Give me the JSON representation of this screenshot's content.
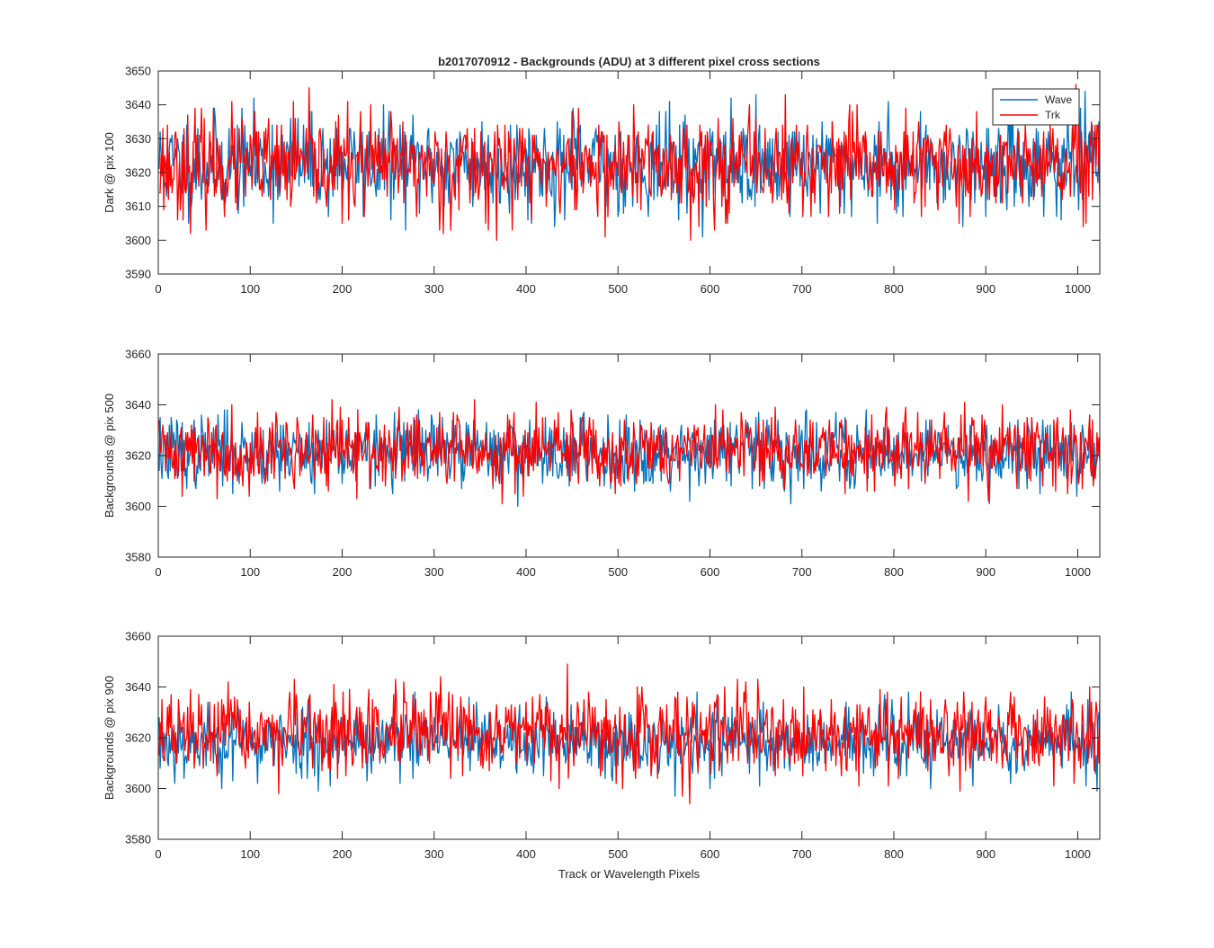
{
  "colors": {
    "wave": "#0072BD",
    "trk": "#FF0000",
    "axis": "#262626"
  },
  "chart_data": [
    {
      "type": "line",
      "title": "b2017070912 - Backgrounds (ADU) at 3 different pixel cross sections",
      "xlabel": "",
      "ylabel": "Dark @ pix 100",
      "xlim": [
        0,
        1024
      ],
      "ylim": [
        3590,
        3650
      ],
      "xticks": [
        0,
        100,
        200,
        300,
        400,
        500,
        600,
        700,
        800,
        900,
        1000
      ],
      "yticks": [
        3590,
        3600,
        3610,
        3620,
        3630,
        3640,
        3650
      ],
      "legend": {
        "position": "top-right",
        "entries": [
          "Wave",
          "Trk"
        ]
      },
      "series": [
        {
          "name": "Wave",
          "color": "#0072BD",
          "points": 1024,
          "mean": 3622.5,
          "std": 7.0,
          "min": 3600,
          "max": 3650,
          "seed": 11
        },
        {
          "name": "Trk",
          "color": "#FF0000",
          "points": 1024,
          "mean": 3622,
          "std": 7.5,
          "min": 3597,
          "max": 3649,
          "seed": 23
        }
      ]
    },
    {
      "type": "line",
      "title": "",
      "xlabel": "",
      "ylabel": "Backgrounds @ pix 500",
      "xlim": [
        0,
        1024
      ],
      "ylim": [
        3580,
        3660
      ],
      "xticks": [
        0,
        100,
        200,
        300,
        400,
        500,
        600,
        700,
        800,
        900,
        1000
      ],
      "yticks": [
        3580,
        3600,
        3620,
        3640,
        3660
      ],
      "series": [
        {
          "name": "Wave",
          "color": "#0072BD",
          "points": 1024,
          "mean": 3621.5,
          "std": 7.0,
          "min": 3597,
          "max": 3650,
          "seed": 37
        },
        {
          "name": "Trk",
          "color": "#FF0000",
          "points": 1024,
          "mean": 3622,
          "std": 7.5,
          "min": 3589,
          "max": 3652,
          "seed": 41
        }
      ]
    },
    {
      "type": "line",
      "title": "",
      "xlabel": "Track or Wavelength Pixels",
      "ylabel": "Backgrounds @ pix 900",
      "xlim": [
        0,
        1024
      ],
      "ylim": [
        3580,
        3660
      ],
      "xticks": [
        0,
        100,
        200,
        300,
        400,
        500,
        600,
        700,
        800,
        900,
        1000
      ],
      "yticks": [
        3580,
        3600,
        3620,
        3640,
        3660
      ],
      "series": [
        {
          "name": "Wave",
          "color": "#0072BD",
          "points": 1024,
          "mean": 3618.5,
          "std": 7.0,
          "min": 3591,
          "max": 3641,
          "seed": 53
        },
        {
          "name": "Trk",
          "color": "#FF0000",
          "points": 1024,
          "mean": 3621.5,
          "std": 8.0,
          "min": 3590,
          "max": 3653,
          "seed": 67
        }
      ]
    }
  ]
}
